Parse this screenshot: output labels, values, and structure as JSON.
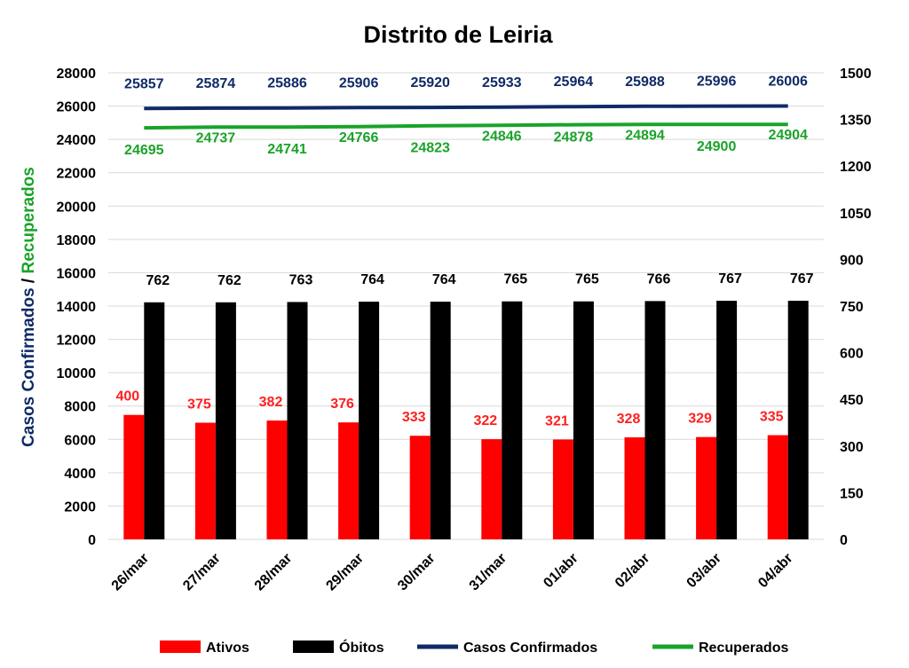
{
  "chart_data": {
    "type": "bar",
    "title": "Distrito de Leiria",
    "ylabel_part1": "Casos Confirmados",
    "ylabel_sep": " / ",
    "ylabel_part2": "Recuperados",
    "categories": [
      "26/mar",
      "27/mar",
      "28/mar",
      "29/mar",
      "30/mar",
      "31/mar",
      "01/abr",
      "02/abr",
      "03/abr",
      "04/abr"
    ],
    "left_axis": {
      "min": 0,
      "max": 28000,
      "step": 2000,
      "ticks": [
        "0",
        "2000",
        "4000",
        "6000",
        "8000",
        "10000",
        "12000",
        "14000",
        "16000",
        "18000",
        "20000",
        "22000",
        "24000",
        "26000",
        "28000"
      ]
    },
    "right_axis": {
      "min": 0,
      "max": 1500,
      "step": 150,
      "ticks": [
        "0",
        "150",
        "300",
        "450",
        "600",
        "750",
        "900",
        "1050",
        "1200",
        "1350",
        "1500"
      ]
    },
    "grid": true,
    "legend_position": "bottom",
    "series": [
      {
        "name": "Ativos",
        "type": "bar",
        "axis": "right",
        "color": "#ff0000",
        "label_color": "#ff2020",
        "values": [
          400,
          375,
          382,
          376,
          333,
          322,
          321,
          328,
          329,
          335
        ],
        "labels": [
          "400",
          "375",
          "382",
          "376",
          "333",
          "322",
          "321",
          "328",
          "329",
          "335"
        ]
      },
      {
        "name": "Óbitos",
        "type": "bar",
        "axis": "right",
        "color": "#000000",
        "label_color": "#000000",
        "values": [
          762,
          762,
          763,
          764,
          764,
          765,
          765,
          766,
          767,
          767
        ],
        "labels": [
          "762",
          "762",
          "763",
          "764",
          "764",
          "765",
          "765",
          "766",
          "767",
          "767"
        ]
      },
      {
        "name": "Casos Confirmados",
        "type": "line",
        "axis": "left",
        "color": "#0f2a66",
        "label_color": "#0f2a66",
        "values": [
          25857,
          25874,
          25886,
          25906,
          25920,
          25933,
          25964,
          25988,
          25996,
          26006
        ],
        "labels": [
          "25857",
          "25874",
          "25886",
          "25906",
          "25920",
          "25933",
          "25964",
          "25988",
          "25996",
          "26006"
        ]
      },
      {
        "name": "Recuperados",
        "type": "line",
        "axis": "left",
        "color": "#1aa32a",
        "label_color": "#1aa32a",
        "values": [
          24695,
          24737,
          24741,
          24766,
          24823,
          24846,
          24878,
          24894,
          24900,
          24904
        ],
        "labels": [
          "24695",
          "24737",
          "24741",
          "24766",
          "24823",
          "24846",
          "24878",
          "24894",
          "24900",
          "24904"
        ]
      }
    ],
    "ylabel_color_part1": "#0f2a66",
    "ylabel_color_part2": "#1aa32a"
  }
}
